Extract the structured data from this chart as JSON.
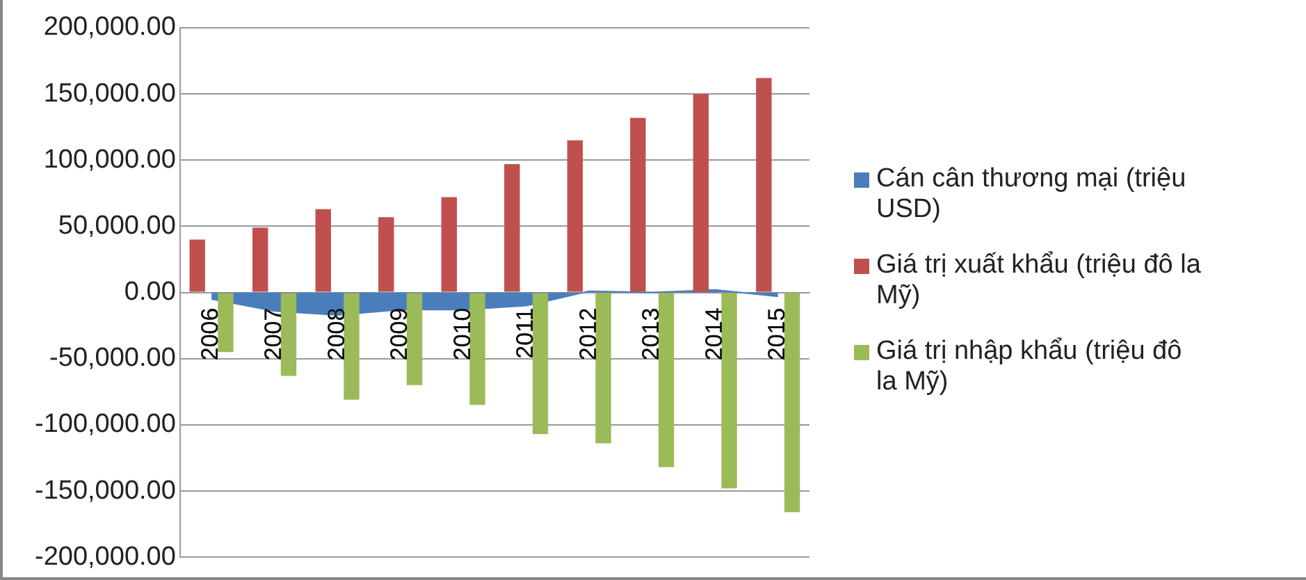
{
  "chart_data": {
    "type": "bar",
    "categories": [
      "2006",
      "2007",
      "2008",
      "2009",
      "2010",
      "2011",
      "2012",
      "2013",
      "2014",
      "2015"
    ],
    "series": [
      {
        "name": "Cán cân thương mại (triệu USD)",
        "type": "area",
        "color": "#4a7ebb",
        "values": [
          -5000,
          -14000,
          -17000,
          -13000,
          -13000,
          -10000,
          1000,
          0,
          2000,
          -3000
        ]
      },
      {
        "name": "Giá trị xuất khẩu (triệu đô la Mỹ)",
        "color": "#c0504d",
        "values": [
          40000,
          49000,
          63000,
          57000,
          72000,
          97000,
          115000,
          132000,
          150000,
          162000
        ]
      },
      {
        "name": "Giá trị nhập khẩu (triệu đô la Mỹ)",
        "color": "#9bbb59",
        "values": [
          -45000,
          -63000,
          -81000,
          -70000,
          -85000,
          -107000,
          -114000,
          -132000,
          -148000,
          -166000
        ]
      }
    ],
    "ylim": [
      -200000,
      200000
    ],
    "yticks": [
      {
        "value": -200000,
        "label": "-200,000.00"
      },
      {
        "value": -150000,
        "label": "-150,000.00"
      },
      {
        "value": -100000,
        "label": "-100,000.00"
      },
      {
        "value": -50000,
        "label": "-50,000.00"
      },
      {
        "value": 0,
        "label": "0.00"
      },
      {
        "value": 50000,
        "label": "50,000.00"
      },
      {
        "value": 100000,
        "label": "100,000.00"
      },
      {
        "value": 150000,
        "label": "150,000.00"
      },
      {
        "value": 200000,
        "label": "200,000.00"
      }
    ],
    "grid": "y",
    "legend": "right"
  }
}
